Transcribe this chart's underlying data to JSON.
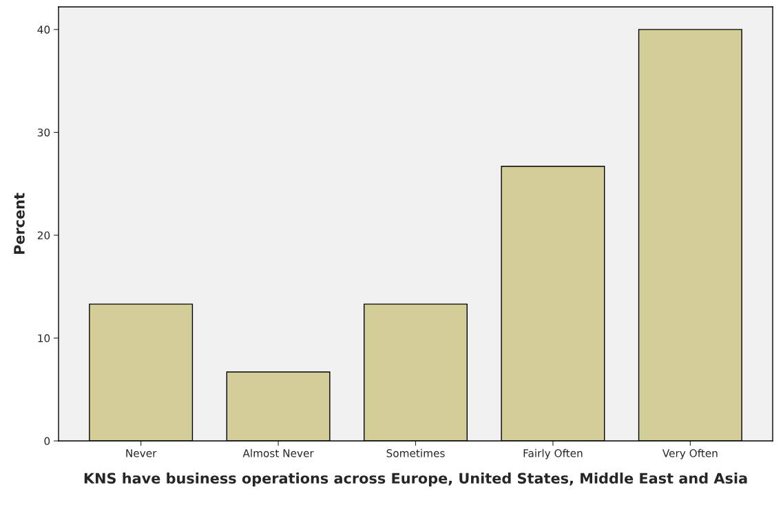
{
  "chart_data": {
    "type": "bar",
    "xlabel": "KNS have business operations across Europe, United States, Middle East and Asia",
    "ylabel": "Percent",
    "categories": [
      "Never",
      "Almost Never",
      "Sometimes",
      "Fairly Often",
      "Very Often"
    ],
    "values": [
      13.3,
      6.7,
      13.3,
      26.7,
      40.0
    ],
    "color": "#d3ce97",
    "ylim": [
      0,
      42.2
    ],
    "yticks": [
      0,
      10,
      20,
      30,
      40
    ],
    "grid": false
  }
}
